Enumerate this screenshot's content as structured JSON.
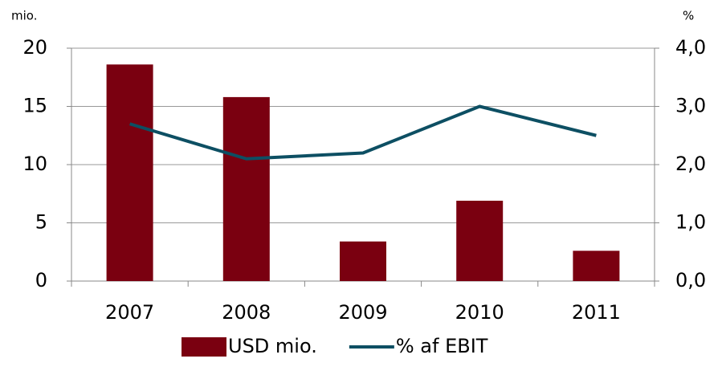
{
  "chart_data": {
    "type": "bar",
    "y_unit": "mio.",
    "y2_unit": "%",
    "categories": [
      "2007",
      "2008",
      "2009",
      "2010",
      "2011"
    ],
    "series": [
      {
        "name": "USD mio.",
        "type": "bar",
        "color": "#7a0010",
        "values": [
          18.6,
          15.8,
          3.4,
          6.9,
          2.6
        ]
      },
      {
        "name": "% af EBIT",
        "type": "line",
        "axis": "y2",
        "color": "#0d4f63",
        "values": [
          2.7,
          2.1,
          2.2,
          3.0,
          2.5
        ]
      }
    ],
    "ylim": [
      0,
      20
    ],
    "yticks": [
      0,
      5,
      10,
      15,
      20
    ],
    "y2lim": [
      0,
      4
    ],
    "y2ticks": [
      {
        "value": 0,
        "label": "0,0"
      },
      {
        "value": 1,
        "label": "1,0"
      },
      {
        "value": 2,
        "label": "2,0"
      },
      {
        "value": 3,
        "label": "3,0"
      },
      {
        "value": 4,
        "label": "4,0"
      }
    ],
    "grid": true,
    "legend": "bottom"
  }
}
